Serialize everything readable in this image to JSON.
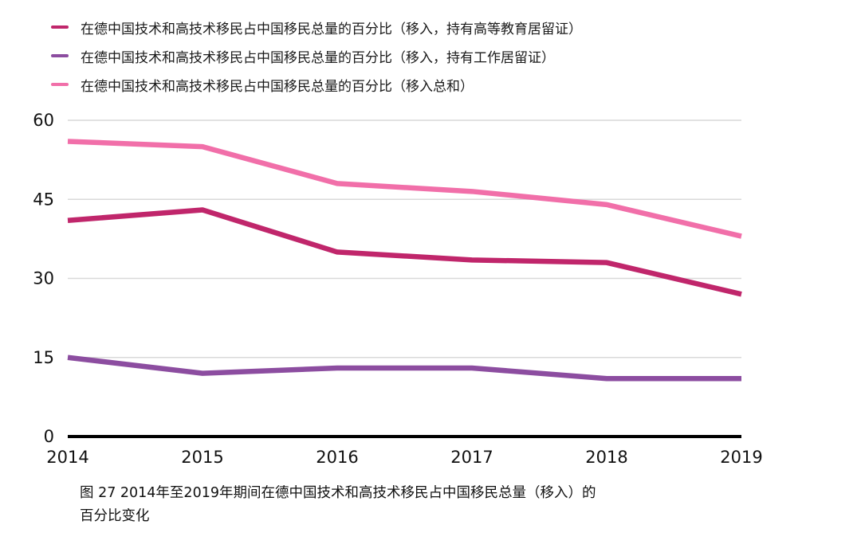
{
  "caption": "图 27 2014年至2019年期间在德中国技术和高技术移民占中国移民总量（移入）的百分比变化",
  "chart_data": {
    "type": "line",
    "x": [
      "2014",
      "2015",
      "2016",
      "2017",
      "2018",
      "2019"
    ],
    "series": [
      {
        "name": "在德中国技术和高技术移民占中国移民总量的百分比（移入，持有高等教育居留证）",
        "color": "#c0266b",
        "values": [
          41,
          43,
          35,
          33.5,
          33,
          27
        ]
      },
      {
        "name": "在德中国技术和高技术移民占中国移民总量的百分比（移入，持有工作居留证）",
        "color": "#8c4da0",
        "values": [
          15,
          12,
          13,
          13,
          11,
          11
        ]
      },
      {
        "name": "在德中国技术和高技术移民占中国移民总量的百分比（移入总和）",
        "color": "#f16fa9",
        "values": [
          56,
          55,
          48,
          46.5,
          44,
          38
        ]
      }
    ],
    "ylim": [
      0,
      60
    ],
    "yticks": [
      0,
      15,
      30,
      45,
      60
    ],
    "grid": true,
    "grid_color": "#d9d9d9",
    "axis_color": "#000000",
    "legend_position": "top-left",
    "title": "",
    "xlabel": "",
    "ylabel": ""
  }
}
